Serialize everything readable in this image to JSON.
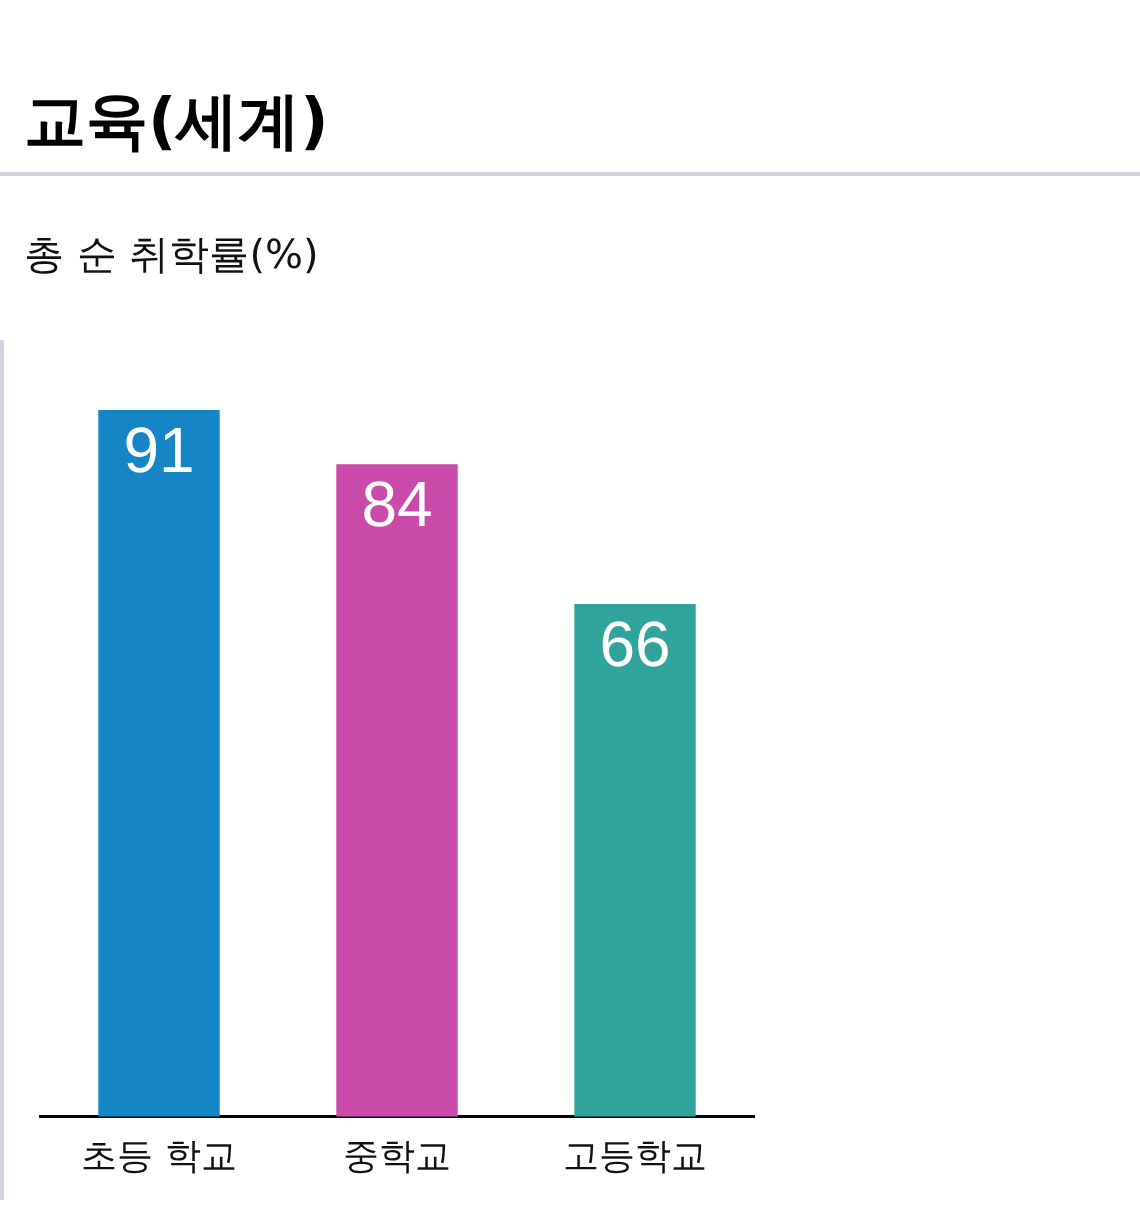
{
  "chart_data": {
    "type": "bar",
    "title": "교육(세계)",
    "subtitle": "총 순 취학률(%)",
    "categories": [
      "초등 학교",
      "중학교",
      "고등학교"
    ],
    "values": [
      91,
      84,
      66
    ],
    "colors": [
      "#1585c5",
      "#c94aa8",
      "#30a49a"
    ],
    "data_labels": true,
    "grid": false,
    "legend": false,
    "tick_labels": "x"
  }
}
